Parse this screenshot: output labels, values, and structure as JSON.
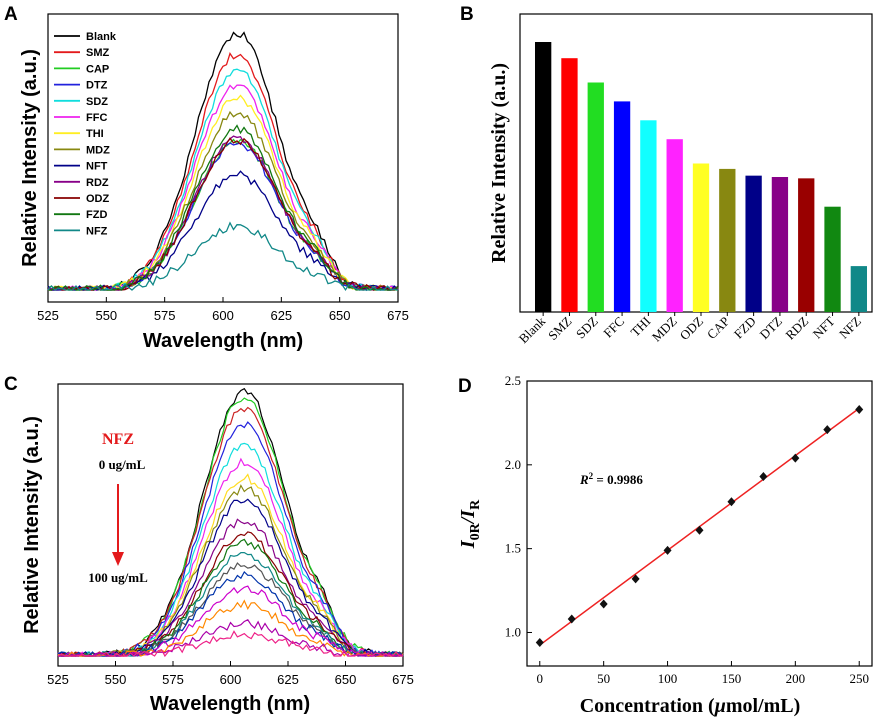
{
  "chart_data": [
    {
      "panel": "A",
      "type": "line",
      "xlabel": "Wavelength (nm)",
      "ylabel": "Relative Intensity (a.u.)",
      "xlim": [
        525,
        675
      ],
      "xticks": [
        525,
        550,
        575,
        600,
        625,
        650,
        675
      ],
      "ylim": [
        0,
        1
      ],
      "legend_position": "top-left",
      "series": [
        {
          "name": "Blank",
          "color": "#000000",
          "peak": 0.96
        },
        {
          "name": "SMZ",
          "color": "#e31a1c",
          "peak": 0.88
        },
        {
          "name": "CAP",
          "color": "#22cc22",
          "peak": 0.56
        },
        {
          "name": "DTZ",
          "color": "#2222dd",
          "peak": 0.55
        },
        {
          "name": "SDZ",
          "color": "#11dddd",
          "peak": 0.82
        },
        {
          "name": "FFC",
          "color": "#ee22ee",
          "peak": 0.76
        },
        {
          "name": "THI",
          "color": "#ffee22",
          "peak": 0.72
        },
        {
          "name": "MDZ",
          "color": "#888811",
          "peak": 0.66
        },
        {
          "name": "NFT",
          "color": "#000088",
          "peak": 0.43
        },
        {
          "name": "RDZ",
          "color": "#880088",
          "peak": 0.57
        },
        {
          "name": "ODZ",
          "color": "#880000",
          "peak": 0.56
        },
        {
          "name": "FZD",
          "color": "#117711",
          "peak": 0.6
        },
        {
          "name": "NFZ",
          "color": "#118888",
          "peak": 0.24
        }
      ]
    },
    {
      "panel": "B",
      "type": "bar",
      "ylabel": "Relative Intensity (a.u.)",
      "ylim": [
        0,
        1
      ],
      "categories": [
        "Blank",
        "SMZ",
        "SDZ",
        "FFC",
        "THI",
        "MDZ",
        "ODZ",
        "CAP",
        "FZD",
        "DTZ",
        "RDZ",
        "NFT",
        "NFZ"
      ],
      "values": [
        1.0,
        0.94,
        0.85,
        0.78,
        0.71,
        0.64,
        0.55,
        0.53,
        0.505,
        0.5,
        0.495,
        0.39,
        0.17
      ],
      "colors": [
        "#000000",
        "#ff0000",
        "#22dd22",
        "#0000ff",
        "#11ffff",
        "#ff22ff",
        "#ffff22",
        "#888811",
        "#000088",
        "#880088",
        "#990000",
        "#118811",
        "#118888"
      ]
    },
    {
      "panel": "C",
      "type": "line",
      "xlabel": "Wavelength (nm)",
      "ylabel": "Relative Intensity (a.u.)",
      "xlim": [
        525,
        675
      ],
      "xticks": [
        525,
        550,
        575,
        600,
        625,
        650,
        675
      ],
      "ylim": [
        0,
        1
      ],
      "annotation": {
        "analyte": "NFZ",
        "start": "0 ug/mL",
        "end": "100 ug/mL"
      },
      "curve_peaks": [
        0.98,
        0.96,
        0.92,
        0.86,
        0.78,
        0.72,
        0.66,
        0.62,
        0.58,
        0.5,
        0.45,
        0.42,
        0.38,
        0.34,
        0.3,
        0.25,
        0.19,
        0.12,
        0.08
      ],
      "curve_colors": [
        "#000000",
        "#22cc22",
        "#cc2222",
        "#2222dd",
        "#11dddd",
        "#ee22ee",
        "#ffdd22",
        "#888811",
        "#000088",
        "#880088",
        "#880000",
        "#117711",
        "#118888",
        "#555555",
        "#0033aa",
        "#cc00cc",
        "#ff8800",
        "#aa00aa",
        "#ee2288"
      ]
    },
    {
      "panel": "D",
      "type": "scatter",
      "xlabel": "Concentration (μmol/mL)",
      "ylabel": "I0R/IR",
      "xlim": [
        -10,
        260
      ],
      "ylim": [
        0.8,
        2.5
      ],
      "xticks": [
        0,
        50,
        100,
        150,
        200,
        250
      ],
      "yticks": [
        1.0,
        1.5,
        2.0,
        2.5
      ],
      "x": [
        0,
        25,
        50,
        75,
        100,
        125,
        150,
        175,
        200,
        225,
        250
      ],
      "y": [
        0.94,
        1.08,
        1.17,
        1.32,
        1.49,
        1.61,
        1.78,
        1.93,
        2.04,
        2.21,
        2.33
      ],
      "fit": {
        "slope": 0.00565,
        "intercept": 0.925,
        "color": "#ee2222"
      },
      "r2_label": "R² = 0.9986"
    }
  ],
  "labels": {
    "panelA": "A",
    "panelB": "B",
    "panelC": "C",
    "panelD": "D",
    "wavelength": "Wavelength (nm)",
    "relint": "Relative Intensity (a.u.)",
    "nfz": "NFZ",
    "conc_start": "0 ug/mL",
    "conc_end": "100 ug/mL",
    "r2_prefix": "R",
    "r2_sup": "2",
    "r2_value": " = 0.9986",
    "d_ylabel_I": "I",
    "d_ylabel_0R": "0R",
    "d_ylabel_slash": "/",
    "d_ylabel_R": "R",
    "d_xlabel_a": "Concentration (",
    "d_xlabel_mu": "μ",
    "d_xlabel_b": "mol/mL)"
  }
}
